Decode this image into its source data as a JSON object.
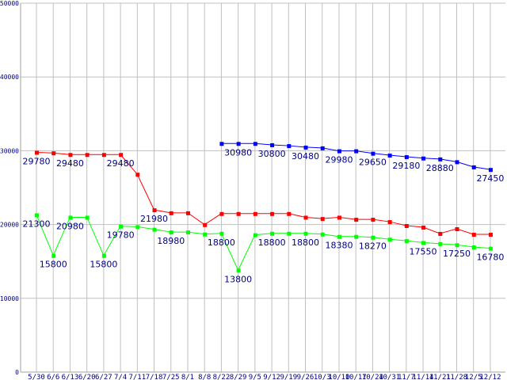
{
  "chart_data": {
    "type": "line",
    "title": "",
    "xlabel": "",
    "ylabel": "",
    "ylim": [
      0,
      50000
    ],
    "yticks": [
      0,
      10000,
      20000,
      30000,
      40000,
      50000
    ],
    "grid": true,
    "categories": [
      "5/30",
      "6/6",
      "6/13",
      "6/20",
      "6/27",
      "7/4",
      "7/11",
      "7/18",
      "7/25",
      "8/1",
      "8/8",
      "8/22",
      "8/29",
      "9/5",
      "9/12",
      "9/19",
      "9/26",
      "10/3",
      "10/10",
      "10/17",
      "10/24",
      "10/31",
      "11/7",
      "11/14",
      "11/21",
      "11/28",
      "12/5",
      "12/12"
    ],
    "series": [
      {
        "name": "red",
        "color": "#ff0000",
        "values": [
          29780,
          29700,
          29480,
          29480,
          29480,
          29480,
          26800,
          21980,
          21580,
          21580,
          19980,
          21480,
          21480,
          21480,
          21480,
          21480,
          20980,
          20800,
          20980,
          20700,
          20700,
          20380,
          19850,
          19630,
          18780,
          19420,
          18670,
          18670
        ],
        "labels": [
          "29780",
          null,
          "29480",
          null,
          null,
          "29480",
          null,
          "21980",
          null,
          null,
          null,
          null,
          null,
          null,
          null,
          null,
          null,
          null,
          null,
          null,
          null,
          null,
          null,
          null,
          null,
          null,
          null,
          null
        ]
      },
      {
        "name": "green",
        "color": "#00ff00",
        "values": [
          21300,
          15800,
          20980,
          20980,
          15800,
          19780,
          19700,
          19350,
          18980,
          18980,
          18700,
          18800,
          13800,
          18600,
          18800,
          18800,
          18800,
          18700,
          18380,
          18380,
          18270,
          18000,
          17800,
          17550,
          17400,
          17250,
          16950,
          16780
        ],
        "labels": [
          "21300",
          "15800",
          "20980",
          null,
          "15800",
          "19780",
          null,
          null,
          "18980",
          null,
          null,
          "18800",
          "13800",
          null,
          "18800",
          null,
          "18800",
          null,
          "18380",
          null,
          "18270",
          null,
          null,
          "17550",
          null,
          "17250",
          null,
          "16780"
        ]
      },
      {
        "name": "blue",
        "color": "#0000ff",
        "values": [
          null,
          null,
          null,
          null,
          null,
          null,
          null,
          null,
          null,
          null,
          null,
          30980,
          30980,
          30980,
          30800,
          30680,
          30480,
          30380,
          29980,
          29980,
          29650,
          29400,
          29180,
          29000,
          28880,
          28500,
          27800,
          27450
        ],
        "labels": [
          null,
          null,
          null,
          null,
          null,
          null,
          null,
          null,
          null,
          null,
          null,
          null,
          "30980",
          null,
          "30800",
          null,
          "30480",
          null,
          "29980",
          null,
          "29650",
          null,
          "29180",
          null,
          "28880",
          null,
          null,
          "27450"
        ]
      }
    ]
  }
}
